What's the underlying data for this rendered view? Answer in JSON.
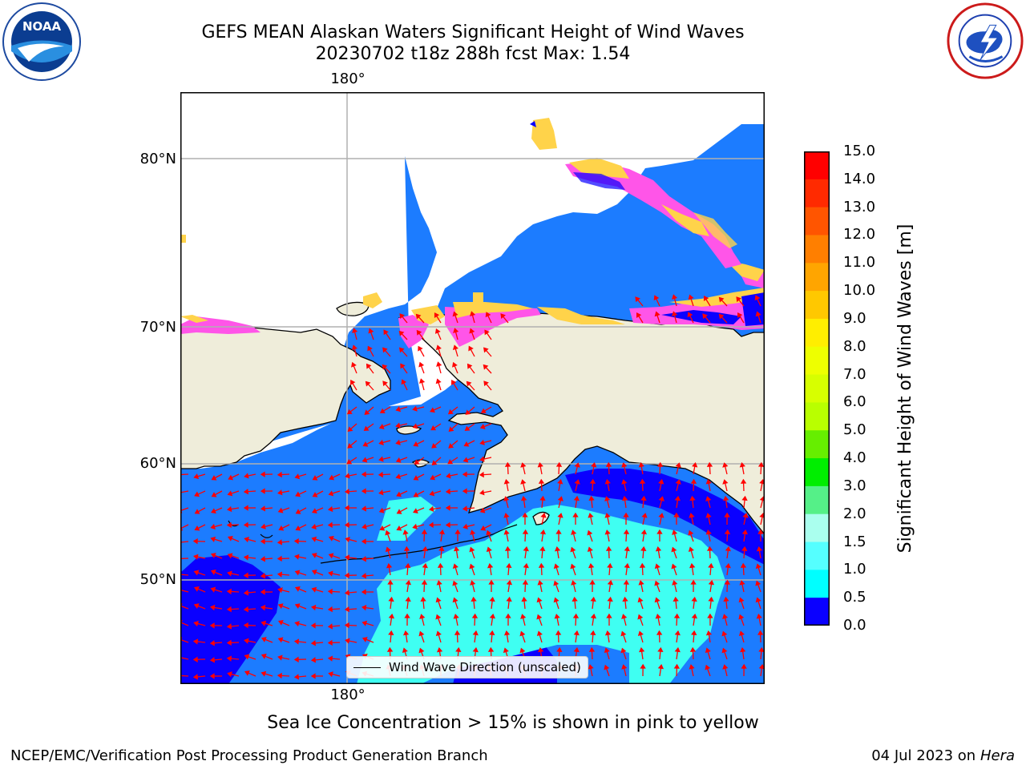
{
  "header": {
    "title_line1": "GEFS MEAN Alaskan Waters Significant Height of Wind Waves",
    "title_line2": "20230702 t18z 288h fcst   Max: 1.54",
    "left_logo_text": "NOAA",
    "left_logo_ring_text": "NATIONAL OCEANIC AND ATMOSPHERIC ADMINISTRATION · U.S. DEPARTMENT OF COMMERCE",
    "right_logo_ring_text": "NATIONAL WEATHER SERVICE"
  },
  "map": {
    "lon_top_label": "180°",
    "lon_bottom_label": "180°",
    "lat_labels": [
      "80°N",
      "70°N",
      "60°N",
      "50°N"
    ],
    "colors": {
      "land": "#efedda",
      "ocean_light": "#1c7cff",
      "ocean_dark": "#0a00ff",
      "cyan": "#00ffff",
      "arrow": "#ff0000",
      "ice_pink": "#ff55e8",
      "ice_yellow": "#ffd34a"
    },
    "legend_label": "Wind Wave Direction (unscaled)"
  },
  "colorbar": {
    "title": "Significant Height of Wind Waves [m]",
    "ticks": [
      "15.0",
      "14.0",
      "13.0",
      "12.0",
      "11.0",
      "10.0",
      "9.0",
      "8.0",
      "7.0",
      "6.0",
      "5.0",
      "4.0",
      "3.0",
      "2.0",
      "1.5",
      "1.0",
      "0.5",
      "0.0"
    ],
    "colors_top_to_bottom": [
      "#ff0000",
      "#ff2a00",
      "#ff5500",
      "#ff7f00",
      "#ffa500",
      "#ffc800",
      "#ffee00",
      "#eeff00",
      "#d7ff00",
      "#b9ff00",
      "#66ee00",
      "#00ee00",
      "#55f088",
      "#aaffee",
      "#55ffff",
      "#00ffff",
      "#007dff",
      "#0a00ff"
    ]
  },
  "note": "Sea Ice Concentration > 15% is shown in pink to yellow",
  "footer": {
    "left": "NCEP/EMC/Verification Post Processing Product Generation Branch",
    "right_date": "04 Jul 2023 on ",
    "right_host": "Hera"
  }
}
